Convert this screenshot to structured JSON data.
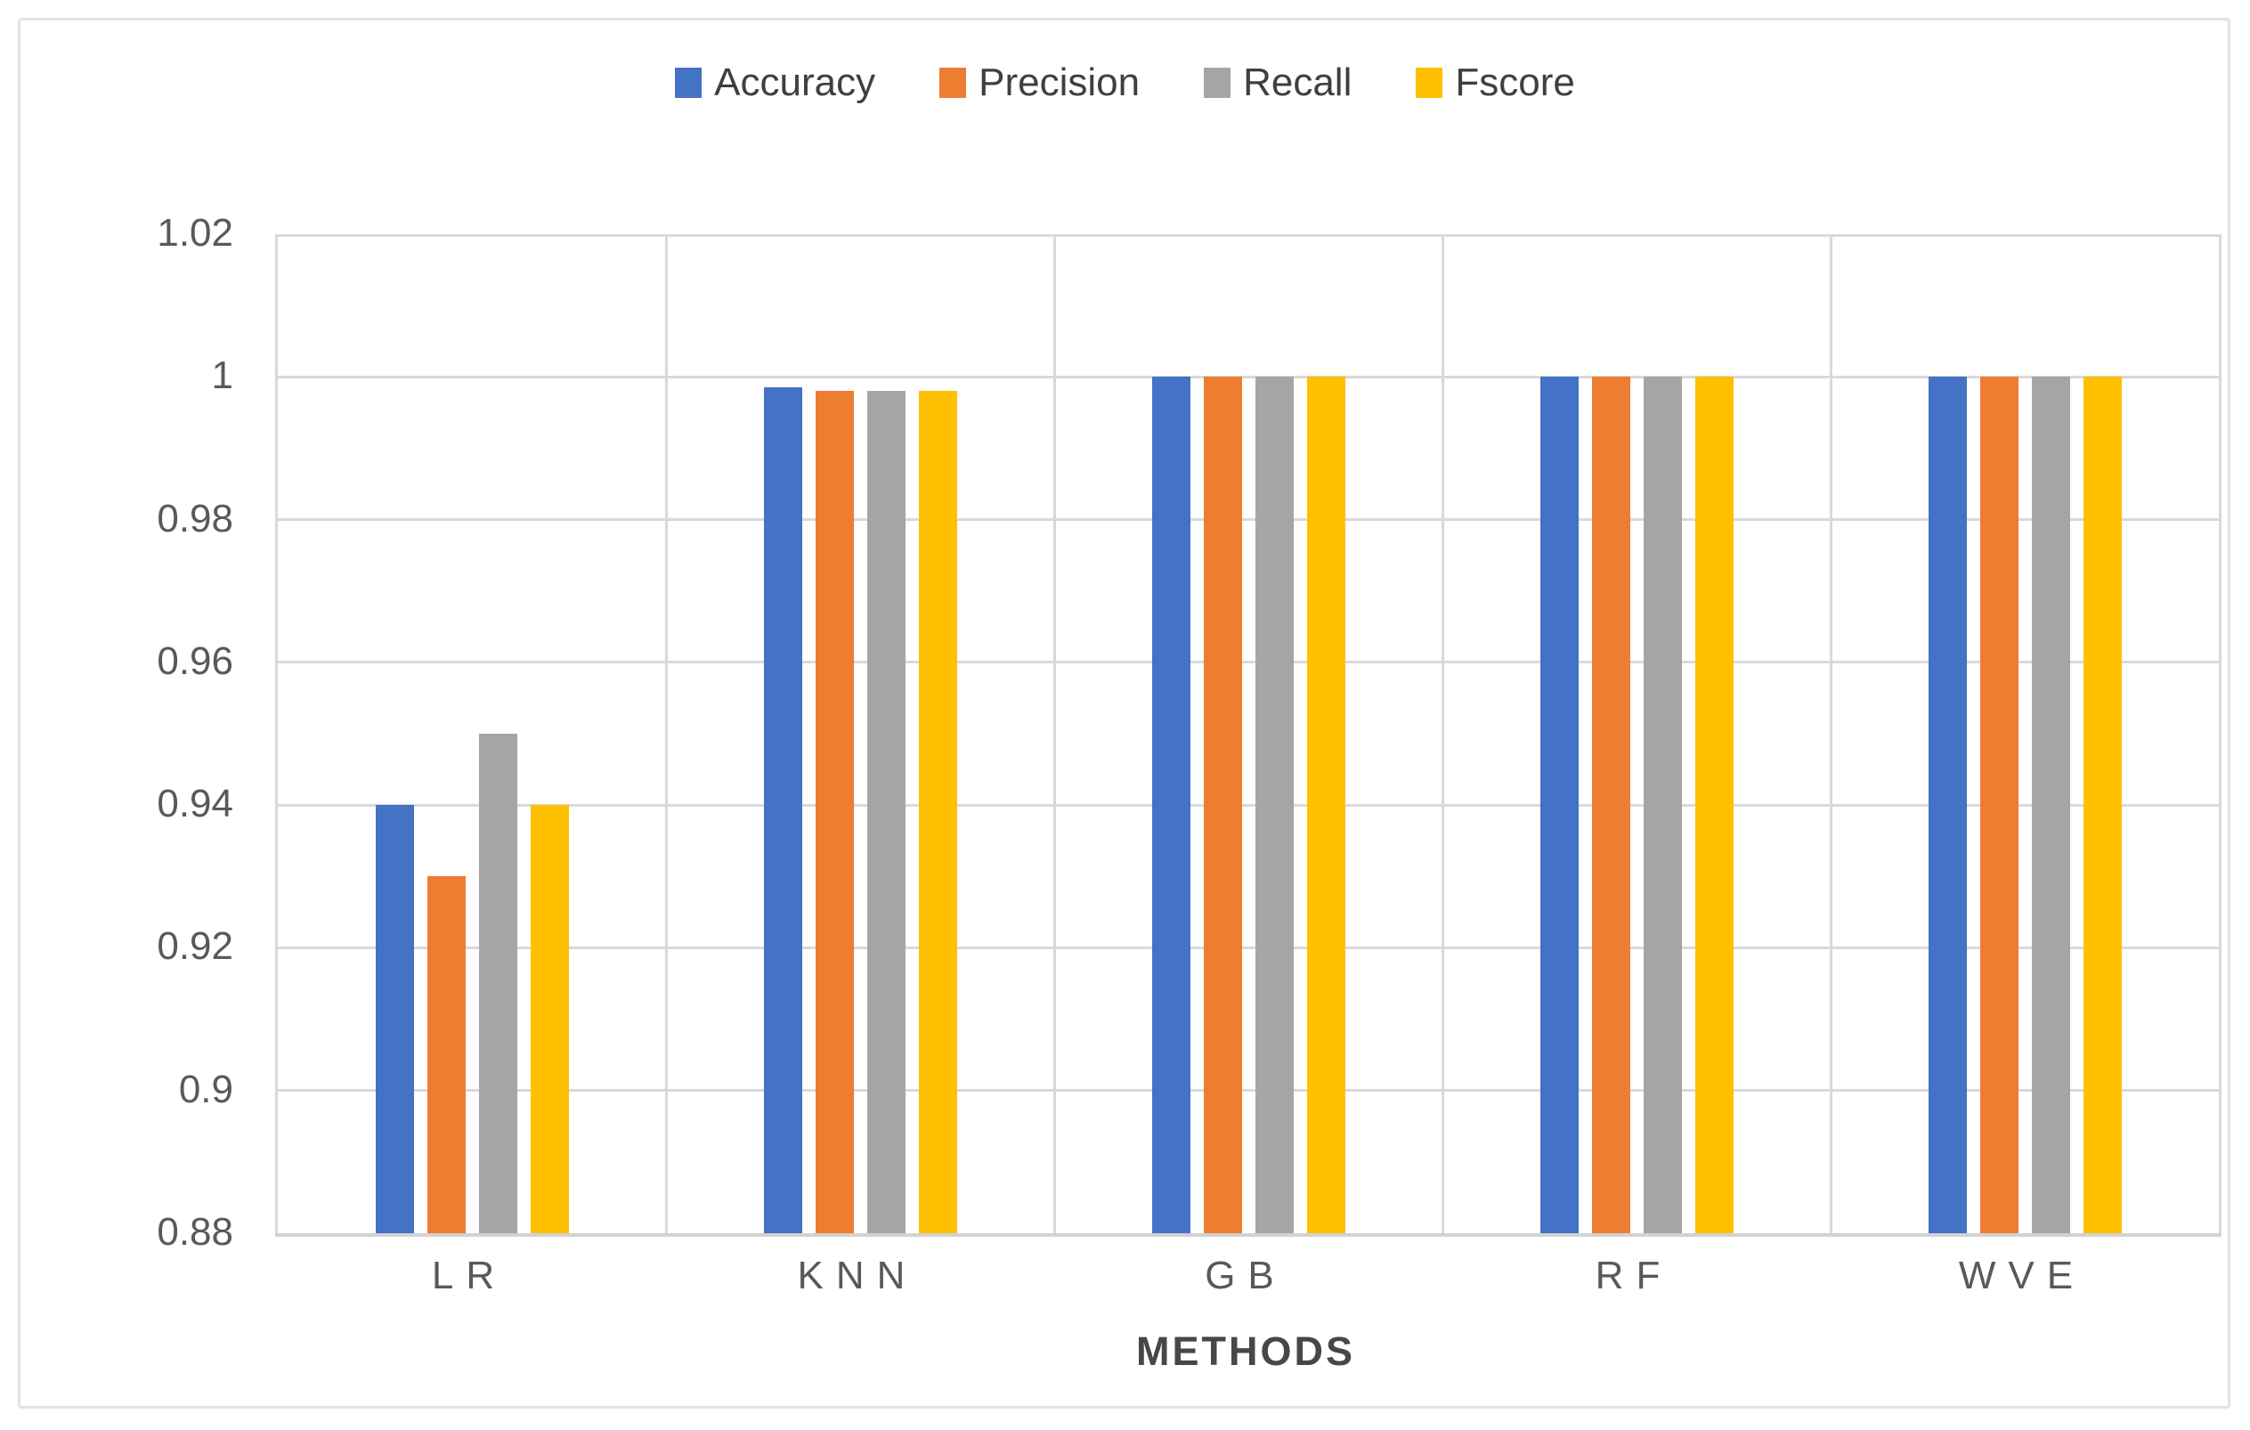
{
  "page": {
    "background": "#ffffff",
    "frame_border_color": "#e2e2e2"
  },
  "chart_data": {
    "type": "bar",
    "title": "",
    "categories": [
      "LR",
      "KNN",
      "GB",
      "RF",
      "WVE"
    ],
    "series": [
      {
        "name": "Accuracy",
        "color": "#4472C4",
        "values": [
          0.94,
          0.9985,
          1.0,
          1.0,
          1.0
        ]
      },
      {
        "name": "Precision",
        "color": "#ED7D31",
        "values": [
          0.93,
          0.998,
          1.0,
          1.0,
          1.0
        ]
      },
      {
        "name": "Recall",
        "color": "#A5A5A5",
        "values": [
          0.95,
          0.998,
          1.0,
          1.0,
          1.0
        ]
      },
      {
        "name": "Fscore",
        "color": "#FFC000",
        "values": [
          0.94,
          0.998,
          1.0,
          1.0,
          1.0
        ]
      }
    ],
    "xlabel": "METHODS",
    "ylabel": "",
    "ylim": [
      0.88,
      1.02
    ],
    "ytick_step": 0.02,
    "ytick_labels": [
      "1.02",
      "1",
      "0.98",
      "0.96",
      "0.94",
      "0.92",
      "0.9",
      "0.88"
    ],
    "grid": true,
    "vertical_category_separators": true,
    "legend_position": "top-center",
    "colors": {
      "gridline": "#d9d9d9",
      "axis_line": "#d2d2d2",
      "tick_text": "#595959",
      "legend_text": "#3f3f3f",
      "xlabel_text": "#474747"
    }
  }
}
